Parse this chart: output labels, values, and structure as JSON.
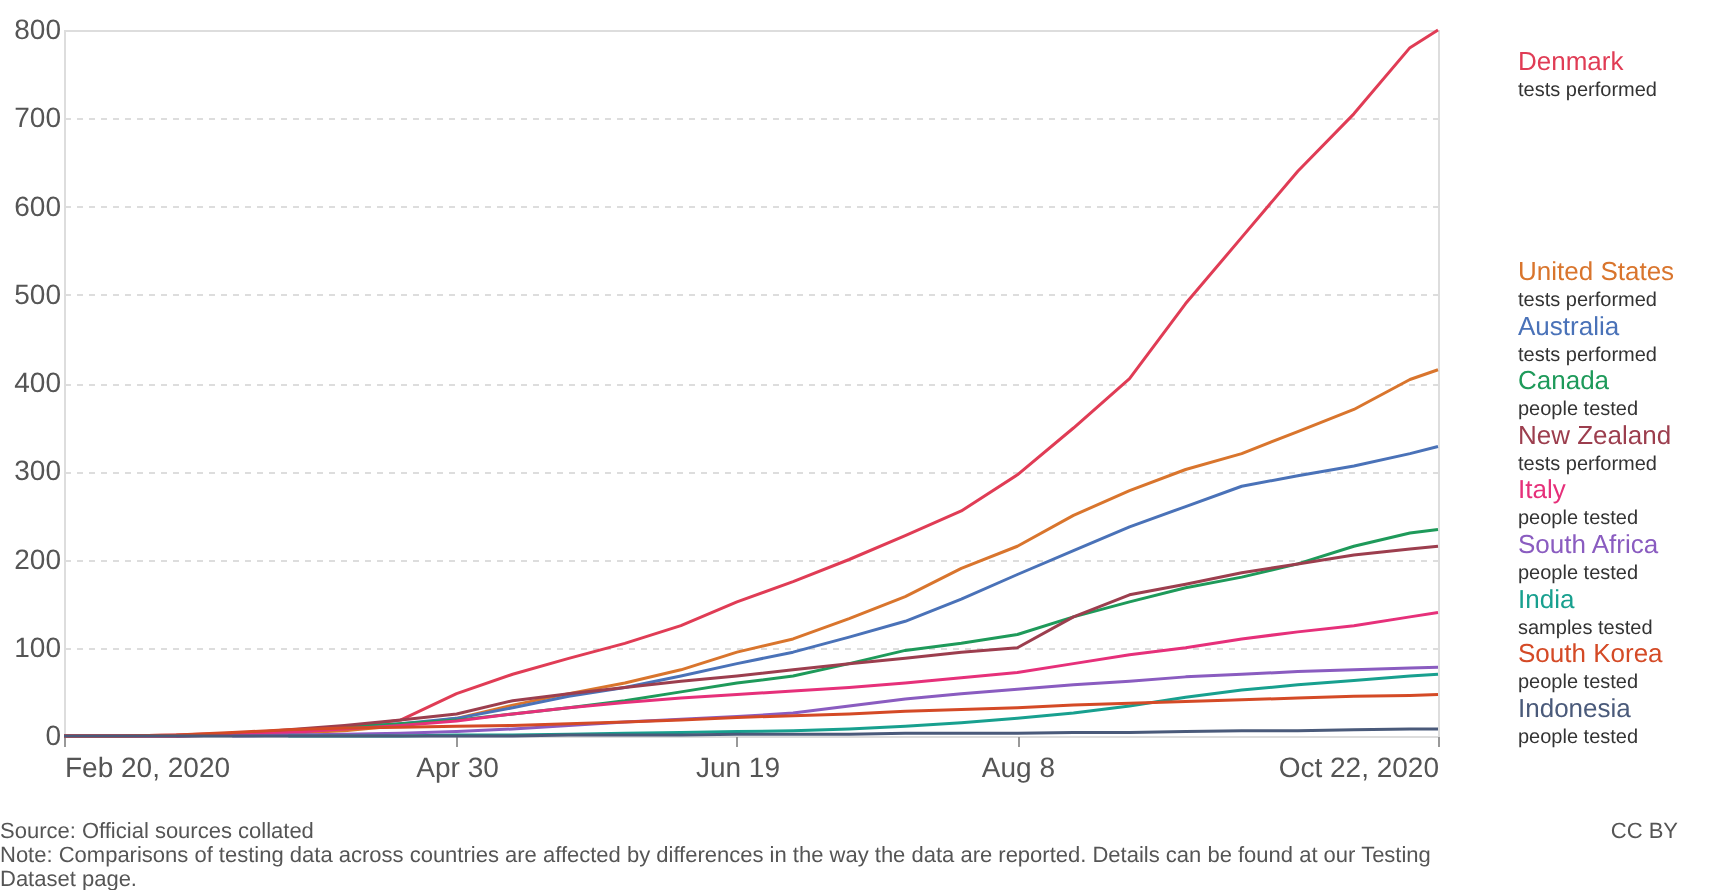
{
  "chart_data": {
    "type": "line",
    "x": [
      "2020-02-20",
      "2020-03-01",
      "2020-03-11",
      "2020-03-21",
      "2020-03-31",
      "2020-04-10",
      "2020-04-20",
      "2020-04-30",
      "2020-05-10",
      "2020-05-20",
      "2020-05-30",
      "2020-06-09",
      "2020-06-19",
      "2020-06-29",
      "2020-07-09",
      "2020-07-19",
      "2020-07-29",
      "2020-08-08",
      "2020-08-18",
      "2020-08-28",
      "2020-09-07",
      "2020-09-17",
      "2020-09-27",
      "2020-10-07",
      "2020-10-17",
      "2020-10-22"
    ],
    "series": [
      {
        "name": "Denmark",
        "color": "#e03c55",
        "values": [
          0,
          0,
          1,
          3,
          6,
          10,
          18,
          48,
          70,
          88,
          105,
          125,
          152,
          175,
          200,
          227,
          255,
          296,
          349,
          405,
          490,
          565,
          640,
          705,
          780,
          800
        ]
      },
      {
        "name": "United States",
        "color": "#d9752d",
        "values": [
          0,
          0,
          0,
          1,
          3,
          6,
          12,
          20,
          35,
          48,
          60,
          75,
          95,
          110,
          133,
          158,
          190,
          215,
          250,
          278,
          302,
          320,
          345,
          370,
          404,
          415
        ]
      },
      {
        "name": "Australia",
        "color": "#4a72b8",
        "values": [
          null,
          null,
          0,
          1,
          4,
          9,
          14,
          20,
          32,
          45,
          55,
          68,
          82,
          95,
          112,
          130,
          155,
          183,
          210,
          237,
          260,
          283,
          295,
          306,
          320,
          328
        ]
      },
      {
        "name": "Canada",
        "color": "#1e9a5a",
        "values": [
          null,
          null,
          null,
          null,
          6,
          10,
          14,
          18,
          25,
          32,
          40,
          50,
          60,
          68,
          82,
          97,
          105,
          115,
          135,
          152,
          168,
          180,
          195,
          215,
          230,
          234
        ]
      },
      {
        "name": "New Zealand",
        "color": "#9c3e4e",
        "values": [
          0,
          0,
          0,
          2,
          7,
          12,
          18,
          25,
          40,
          48,
          55,
          62,
          68,
          75,
          82,
          88,
          95,
          100,
          135,
          160,
          172,
          185,
          195,
          205,
          212,
          215
        ]
      },
      {
        "name": "Italy",
        "color": "#e6307a",
        "values": [
          0,
          0,
          0,
          1,
          4,
          8,
          12,
          17,
          25,
          32,
          38,
          43,
          47,
          51,
          55,
          60,
          66,
          72,
          82,
          92,
          100,
          110,
          118,
          125,
          135,
          140
        ]
      },
      {
        "name": "South Africa",
        "color": "#8a5cc0",
        "values": [
          null,
          null,
          null,
          0,
          1,
          2,
          3,
          5,
          8,
          12,
          16,
          19,
          22,
          26,
          34,
          42,
          48,
          53,
          58,
          62,
          67,
          70,
          73,
          75,
          77,
          78
        ]
      },
      {
        "name": "India",
        "color": "#18a08f",
        "values": [
          null,
          null,
          null,
          null,
          0,
          0,
          0,
          1,
          1,
          2,
          3,
          4,
          5,
          6,
          8,
          11,
          15,
          20,
          26,
          34,
          44,
          52,
          58,
          63,
          68,
          70
        ]
      },
      {
        "name": "South Korea",
        "color": "#d44a26",
        "values": [
          0,
          0,
          1,
          4,
          7,
          9,
          10,
          11,
          12,
          14,
          16,
          18,
          21,
          23,
          25,
          28,
          30,
          32,
          35,
          37,
          39,
          41,
          43,
          45,
          46,
          47
        ]
      },
      {
        "name": "Indonesia",
        "color": "#4a5a7a",
        "values": [
          0,
          0,
          0,
          0,
          0,
          0,
          0,
          0,
          0,
          1,
          1,
          1,
          2,
          2,
          2,
          3,
          3,
          3,
          4,
          4,
          5,
          6,
          6,
          7,
          8,
          8
        ]
      }
    ],
    "xlim": [
      "2020-02-20",
      "2020-10-22"
    ],
    "xticks": [
      {
        "value": "2020-02-20",
        "label": "Feb 20, 2020"
      },
      {
        "value": "2020-04-30",
        "label": "Apr 30"
      },
      {
        "value": "2020-06-19",
        "label": "Jun 19"
      },
      {
        "value": "2020-08-08",
        "label": "Aug 8"
      },
      {
        "value": "2020-10-22",
        "label": "Oct 22, 2020"
      }
    ],
    "ylim": [
      0,
      800
    ],
    "yticks": [
      0,
      100,
      200,
      300,
      400,
      500,
      600,
      700,
      800
    ],
    "grid": "y",
    "legend": "right",
    "line_style": "solid",
    "marker": "none",
    "annotations": [
      "tests performed",
      "tests performed",
      "tests performed",
      "people tested",
      "tests performed",
      "people tested",
      "people tested",
      "samples tested",
      "people tested",
      "people tested",
      "Source: Official sources collated",
      "Note: Comparisons of testing data across countries are affected by differences in the way the data are reported. Details can be found at our Testing Dataset page.",
      "CC BY"
    ]
  }
}
